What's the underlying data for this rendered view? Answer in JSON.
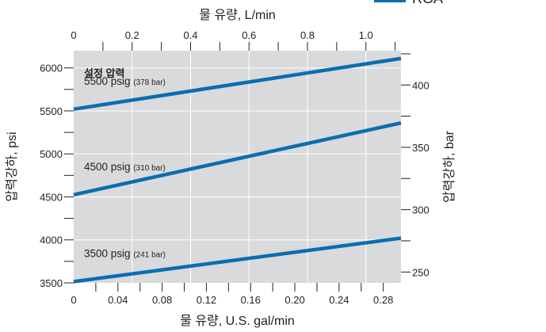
{
  "legend": {
    "label": "RGA",
    "color": "#0a6eb0"
  },
  "chart_data": {
    "type": "line",
    "title": "",
    "group_label": "설정 압력",
    "x_bottom": {
      "label": "물 유량, U.S. gal/min",
      "range": [
        0,
        0.296
      ],
      "ticks": [
        0,
        0.04,
        0.08,
        0.12,
        0.16,
        0.2,
        0.24,
        0.28
      ],
      "tick_labels": [
        "0",
        "0.04",
        "0.08",
        "0.12",
        "0.16",
        "0.20",
        "0.24",
        "0.28"
      ]
    },
    "x_top": {
      "label": "물 유량, L/min",
      "range": [
        0,
        1.12
      ],
      "ticks": [
        0,
        0.2,
        0.4,
        0.6,
        0.8,
        1.0
      ],
      "tick_labels": [
        "0",
        "0.2",
        "0.4",
        "0.6",
        "0.8",
        "1.0"
      ]
    },
    "y_left": {
      "label": "압력강하, psi",
      "range": [
        3500,
        6200
      ],
      "ticks": [
        3500,
        4000,
        4500,
        5000,
        5500,
        6000
      ],
      "tick_labels": [
        "3500",
        "4000",
        "4500",
        "5000",
        "5500",
        "6000"
      ]
    },
    "y_right": {
      "label": "압력강하, bar",
      "range": [
        241.3,
        427.5
      ],
      "ticks": [
        250,
        300,
        350,
        400
      ],
      "tick_labels": [
        "250",
        "300",
        "350",
        "400"
      ]
    },
    "grid": true,
    "series": [
      {
        "name": "5500 psig",
        "name_sub": "(378 bar)",
        "x": [
          0,
          0.296
        ],
        "y": [
          5520,
          6110
        ]
      },
      {
        "name": "4500 psig",
        "name_sub": "(310 bar)",
        "x": [
          0,
          0.296
        ],
        "y": [
          4525,
          5360
        ]
      },
      {
        "name": "3500 psig",
        "name_sub": "(241 bar)",
        "x": [
          0,
          0.296
        ],
        "y": [
          3515,
          4020
        ]
      }
    ]
  }
}
